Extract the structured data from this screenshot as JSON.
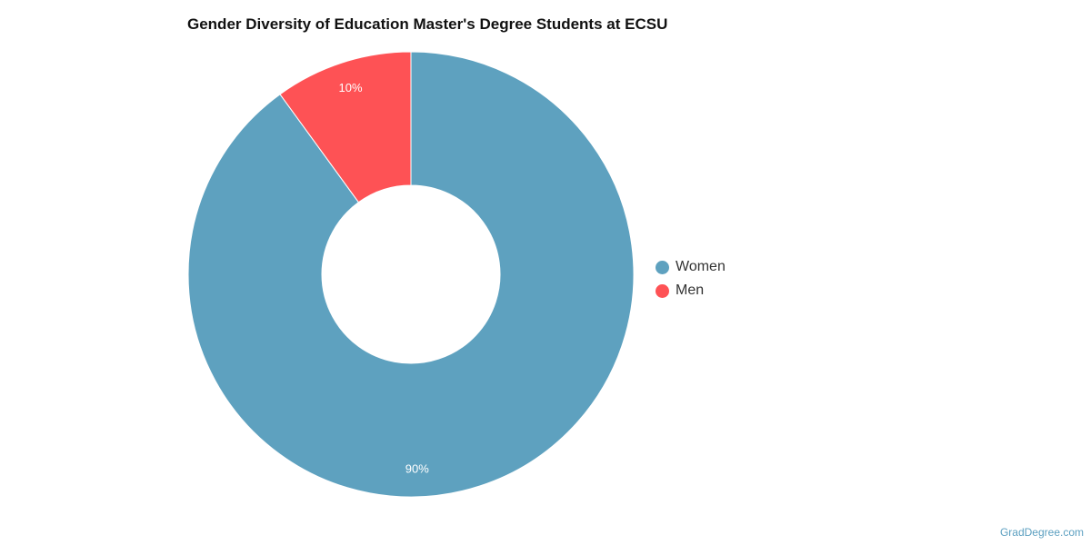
{
  "chart_data": {
    "type": "pie",
    "title": "Gender Diversity of Education Master's Degree Students at ECSU",
    "donut": true,
    "categories": [
      "Women",
      "Men"
    ],
    "values": [
      90,
      10
    ],
    "labels": [
      "90%",
      "10%"
    ],
    "colors": [
      "#5ea1bf",
      "#fe5255"
    ],
    "legend_position": "right"
  },
  "credit": "GradDegree.com"
}
